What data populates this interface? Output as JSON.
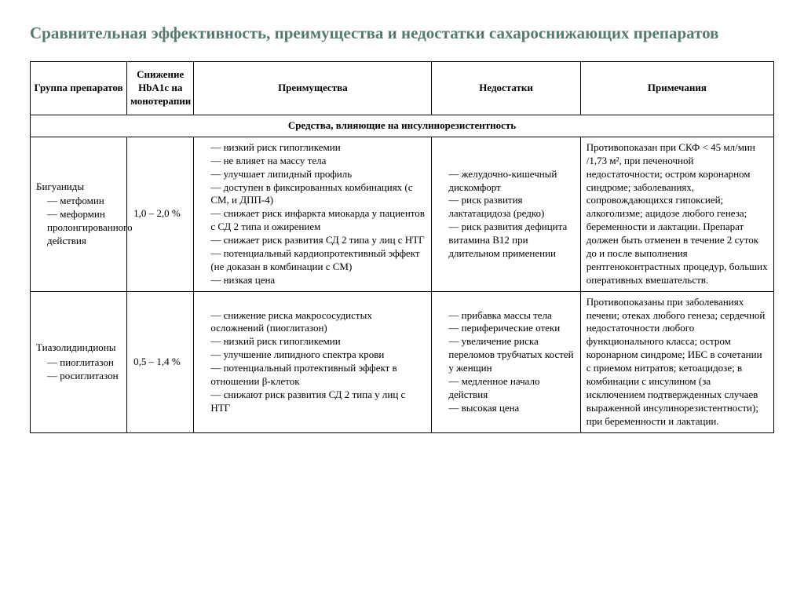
{
  "title": "Сравнительная эффективность, преимущества и недостатки сахароснижающих препаратов",
  "headers": {
    "group": "Группа препаратов",
    "hba1c": "Снижение HbA1c на монотерапии",
    "advantages": "Преимущества",
    "disadvantages": "Недостатки",
    "notes": "Примечания"
  },
  "section": "Средства, влияющие на инсулинорезистентность",
  "rows": [
    {
      "group_name": "Бигуаниды",
      "group_items": [
        "метфомин",
        "меформин пролонгированного действия"
      ],
      "hba1c": "1,0 – 2,0 %",
      "advantages": [
        "низкий риск гипогликемии",
        "не влияет на массу тела",
        "улучшает липидный профиль",
        "доступен в фиксированных комбинациях (с СМ, и ДПП-4)",
        "снижает риск инфаркта миокарда у пациентов с СД 2 типа и ожирением",
        "снижает риск развития СД 2 типа у лиц с НТГ",
        "потенциальный кардиопротективный эффект (не доказан в комбинации с СМ)",
        "низкая цена"
      ],
      "disadvantages": [
        "желудочно-кишечный дискомфорт",
        "риск развития лактатацидоза (редко)",
        "риск развития дефицита витамина B12 при длительном применении"
      ],
      "notes": "Противопоказан при СКФ < 45 мл/мин /1,73 м², при печеночной недостаточности; остром коронарном синдроме; заболеваниях, сопровождающихся гипоксией; алкоголизме; ацидозе любого генеза; беременности и лактации. Препарат должен быть отменен в течение 2 суток до и после выполнения рентгеноконтрастных процедур, больших оперативных вмешательств."
    },
    {
      "group_name": "Тиазолидиндионы",
      "group_items": [
        "пиоглитазон",
        "росиглитазон"
      ],
      "hba1c": "0,5 – 1,4 %",
      "advantages": [
        "снижение риска макрососудистых осложнений (пиоглитазон)",
        "низкий риск гипогликемии",
        "улучшение липидного спектра крови",
        "потенциальный протективный эффект в отношении β-клеток",
        "снижают риск развития СД 2 типа у лиц с НТГ"
      ],
      "disadvantages": [
        "прибавка массы тела",
        "периферические отеки",
        "увеличение риска переломов трубчатых костей у женщин",
        "медленное начало действия",
        "высокая цена"
      ],
      "notes": "Противопоказаны при заболеваниях печени; отеках любого генеза; сердечной недостаточности любого функционального класса; остром коронарном синдроме; ИБС в сочетании с приемом нитратов; кетоацидозе; в комбинации с инсулином (за исключением подтвержденных случаев выраженной инсулинорезистентности); при беременности и лактации."
    }
  ],
  "style": {
    "title_color": "#567a71",
    "border_color": "#000000",
    "bg_color": "#ffffff",
    "font_family": "Times New Roman",
    "title_fontsize": 21,
    "body_fontsize": 13
  }
}
